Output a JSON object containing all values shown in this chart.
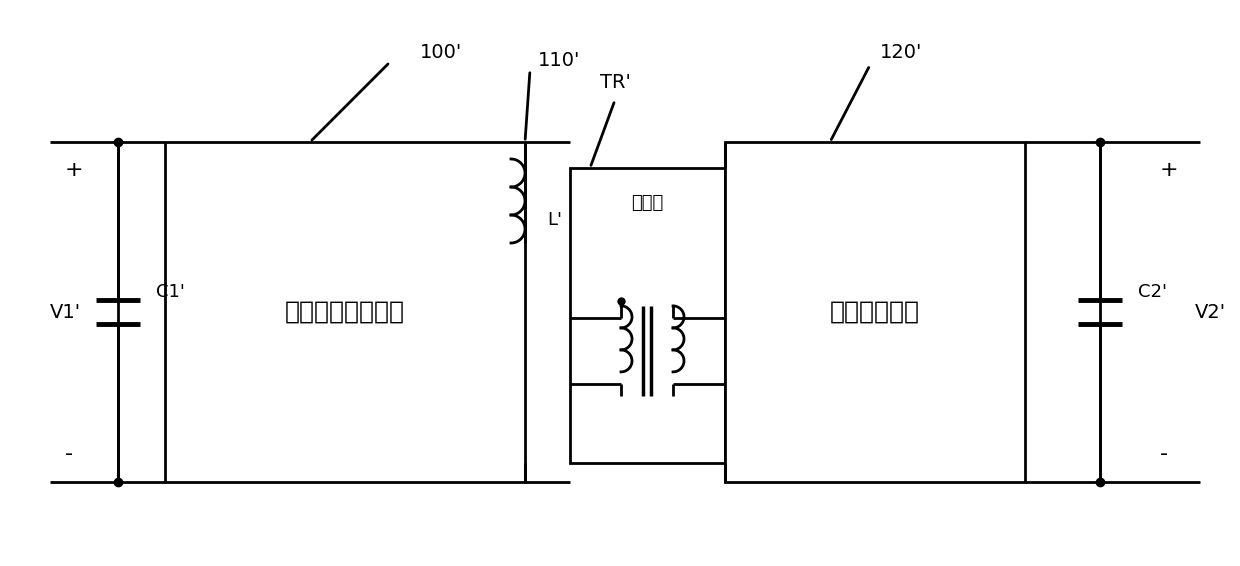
{
  "background_color": "#ffffff",
  "line_color": "#000000",
  "line_width": 2.0,
  "labels": {
    "100_prime": "100'",
    "110_prime": "110'",
    "120_prime": "120'",
    "TR_prime": "TR'",
    "L_prime": "L'",
    "C1_prime": "C1'",
    "C2_prime": "C2'",
    "V1_prime": "V1'",
    "V2_prime": "V2'",
    "plus_left": "+",
    "minus_left": "-",
    "plus_right": "+",
    "minus_right": "-",
    "box1_text": "原边全桥变换电路",
    "box2_text": "副边变换电路",
    "transformer_text": "变压器"
  },
  "figsize": [
    12.4,
    5.66
  ],
  "dpi": 100
}
